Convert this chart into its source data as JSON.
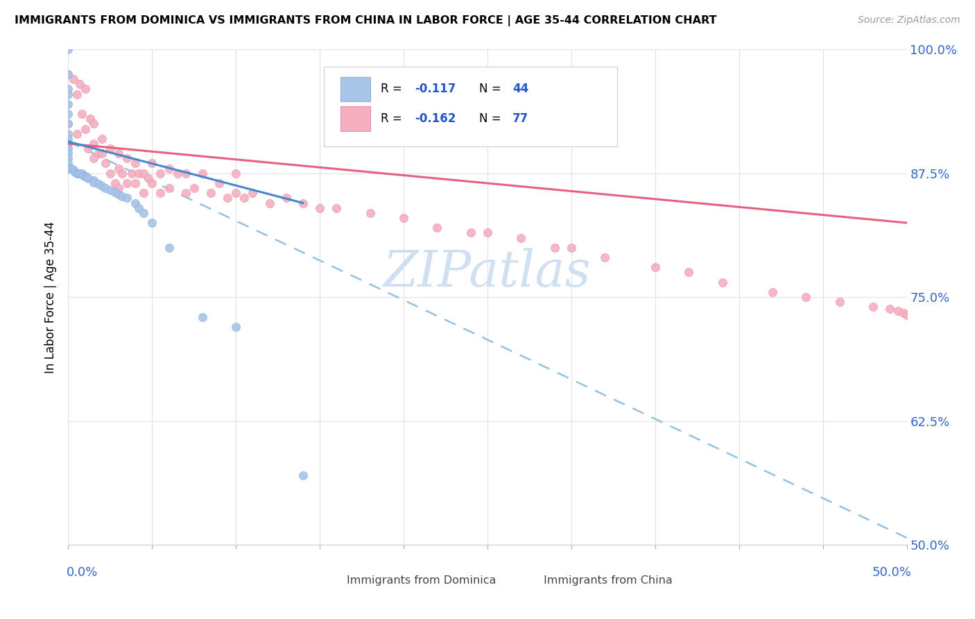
{
  "title": "IMMIGRANTS FROM DOMINICA VS IMMIGRANTS FROM CHINA IN LABOR FORCE | AGE 35-44 CORRELATION CHART",
  "source_text": "Source: ZipAtlas.com",
  "ylabel_label": "In Labor Force | Age 35-44",
  "legend_r1_val": "-0.117",
  "legend_n1_val": "44",
  "legend_r2_val": "-0.162",
  "legend_n2_val": "77",
  "dominica_color": "#a8c4e8",
  "dominica_edge_color": "#8ab0d8",
  "china_color": "#f4b0c0",
  "china_edge_color": "#e890a8",
  "dominica_line_color": "#4488cc",
  "china_line_color": "#e86080",
  "dashed_line_color": "#88bbdd",
  "ytick_labels": [
    "50.0%",
    "62.5%",
    "75.0%",
    "87.5%",
    "100.0%"
  ],
  "ytick_color": "#3366cc",
  "xtick_label_left": "0.0%",
  "xtick_label_right": "50.0%",
  "xlim": [
    0.0,
    0.5
  ],
  "ylim": [
    0.5,
    1.0
  ],
  "dom_x": [
    0.0,
    0.0,
    0.0,
    0.0,
    0.0,
    0.0,
    0.0,
    0.0,
    0.0,
    0.0,
    0.0,
    0.0,
    0.0,
    0.0,
    0.0,
    0.002,
    0.003,
    0.004,
    0.005,
    0.006,
    0.007,
    0.008,
    0.009,
    0.01,
    0.011,
    0.012,
    0.015,
    0.015,
    0.018,
    0.02,
    0.022,
    0.025,
    0.028,
    0.03,
    0.032,
    0.035,
    0.04,
    0.042,
    0.045,
    0.05,
    0.06,
    0.08,
    0.1,
    0.14
  ],
  "dom_y": [
    1.0,
    0.975,
    0.96,
    0.955,
    0.945,
    0.935,
    0.925,
    0.915,
    0.91,
    0.905,
    0.9,
    0.895,
    0.89,
    0.885,
    0.88,
    0.88,
    0.878,
    0.876,
    0.875,
    0.875,
    0.875,
    0.875,
    0.873,
    0.872,
    0.871,
    0.87,
    0.868,
    0.866,
    0.864,
    0.862,
    0.86,
    0.858,
    0.856,
    0.854,
    0.852,
    0.85,
    0.845,
    0.84,
    0.835,
    0.825,
    0.8,
    0.73,
    0.72,
    0.57
  ],
  "china_x": [
    0.0,
    0.0,
    0.003,
    0.005,
    0.005,
    0.007,
    0.008,
    0.01,
    0.01,
    0.012,
    0.013,
    0.015,
    0.015,
    0.015,
    0.018,
    0.02,
    0.02,
    0.022,
    0.025,
    0.025,
    0.028,
    0.03,
    0.03,
    0.03,
    0.032,
    0.035,
    0.035,
    0.038,
    0.04,
    0.04,
    0.042,
    0.045,
    0.045,
    0.048,
    0.05,
    0.05,
    0.055,
    0.055,
    0.06,
    0.06,
    0.065,
    0.07,
    0.07,
    0.075,
    0.08,
    0.085,
    0.09,
    0.095,
    0.1,
    0.1,
    0.105,
    0.11,
    0.12,
    0.13,
    0.14,
    0.15,
    0.16,
    0.18,
    0.2,
    0.22,
    0.24,
    0.25,
    0.27,
    0.29,
    0.3,
    0.32,
    0.35,
    0.37,
    0.39,
    0.42,
    0.44,
    0.46,
    0.48,
    0.49,
    0.495,
    0.498,
    0.5
  ],
  "china_y": [
    0.975,
    0.925,
    0.97,
    0.955,
    0.915,
    0.965,
    0.935,
    0.96,
    0.92,
    0.9,
    0.93,
    0.925,
    0.905,
    0.89,
    0.895,
    0.91,
    0.895,
    0.885,
    0.9,
    0.875,
    0.865,
    0.895,
    0.88,
    0.86,
    0.875,
    0.89,
    0.865,
    0.875,
    0.885,
    0.865,
    0.875,
    0.875,
    0.855,
    0.87,
    0.885,
    0.865,
    0.875,
    0.855,
    0.88,
    0.86,
    0.875,
    0.875,
    0.855,
    0.86,
    0.875,
    0.855,
    0.865,
    0.85,
    0.875,
    0.855,
    0.85,
    0.855,
    0.845,
    0.85,
    0.845,
    0.84,
    0.84,
    0.835,
    0.83,
    0.82,
    0.815,
    0.815,
    0.81,
    0.8,
    0.8,
    0.79,
    0.78,
    0.775,
    0.765,
    0.755,
    0.75,
    0.745,
    0.74,
    0.738,
    0.736,
    0.734,
    0.732
  ],
  "dom_line_x0": 0.0,
  "dom_line_x1": 0.14,
  "dom_line_y0": 0.907,
  "dom_line_y1": 0.845,
  "china_line_x0": 0.0,
  "china_line_x1": 0.5,
  "china_line_y0": 0.905,
  "china_line_y1": 0.825,
  "dash_line_x0": 0.0,
  "dash_line_x1": 0.5,
  "dash_line_y0": 0.907,
  "dash_line_y1": 0.507,
  "watermark": "ZIPatlas",
  "watermark_color": "#d0e0f0",
  "background_color": "white",
  "grid_color": "#e0e0e0"
}
